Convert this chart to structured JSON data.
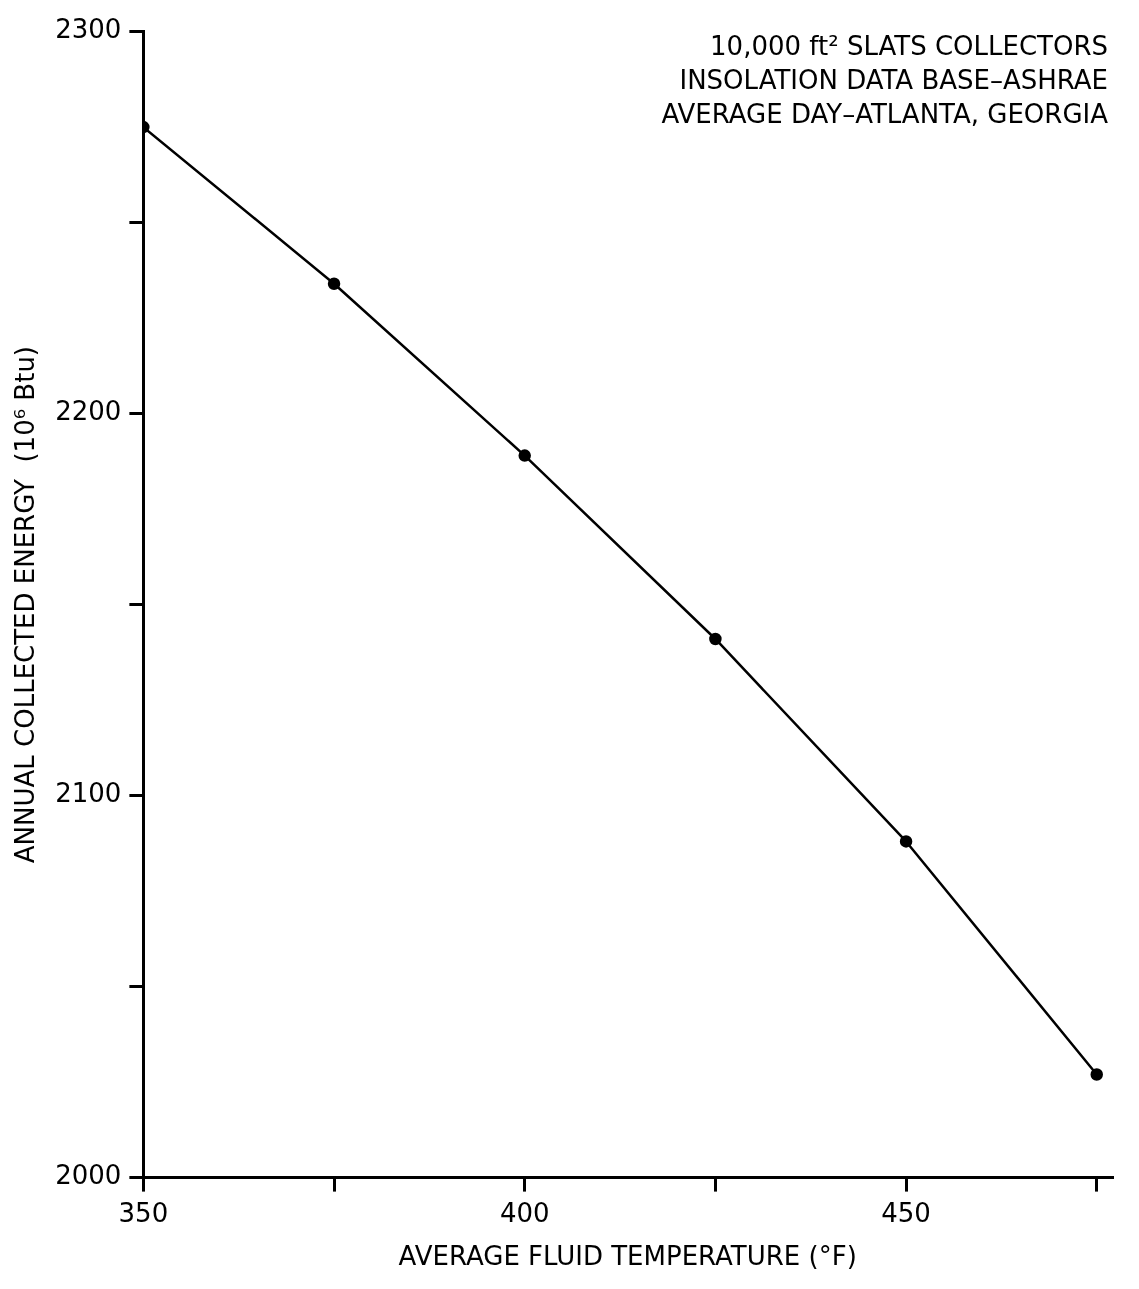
{
  "chart_data": {
    "type": "line",
    "xlabel": "AVERAGE FLUID TEMPERATURE (°F)",
    "ylabel": "ANNUAL COLLECTED ENERGY  (10⁶ Btu)",
    "annotations": [
      "10,000 ft² SLATS COLLECTORS",
      "INSOLATION DATA BASE–ASHRAE",
      "AVERAGE DAY–ATLANTA, GEORGIA"
    ],
    "x": [
      350,
      375,
      400,
      425,
      450,
      475
    ],
    "series": [
      {
        "color": "#000000",
        "values": [
          2275,
          2234,
          2189,
          2141,
          2088,
          2027
        ]
      }
    ],
    "xlim": [
      350,
      477
    ],
    "ylim": [
      2000,
      2300
    ],
    "xticks": [
      350,
      {
        "value": 375,
        "label": null
      },
      400,
      {
        "value": 425,
        "label": null
      },
      450,
      {
        "value": 475,
        "label": null
      }
    ],
    "yticks": [
      2000,
      {
        "value": 2050,
        "label": null
      },
      2100,
      {
        "value": 2150,
        "label": null
      },
      2200,
      {
        "value": 2250,
        "label": null
      },
      2300
    ],
    "grid": false,
    "legend": false,
    "marker": "circle",
    "line_style": "solid"
  }
}
